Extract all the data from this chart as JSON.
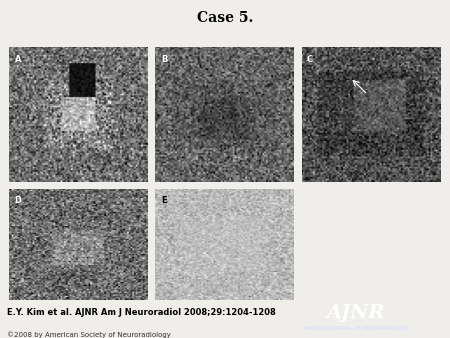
{
  "title": "Case 5.",
  "title_fontsize": 10,
  "citation": "E.Y. Kim et al. AJNR Am J Neuroradiol 2008;29:1204-1208",
  "citation_fontsize": 6.0,
  "copyright": "©2008 by American Society of Neuroradiology",
  "copyright_fontsize": 5.0,
  "bg_color": "#f0eeeb",
  "ajnr_bg": "#1a5a9a",
  "ajnr_text": "AJNR",
  "ajnr_sub": "AMERICAN JOURNAL OF NEURORADIOLOGY",
  "panels": [
    {
      "label": "A",
      "row": 0,
      "col": 0
    },
    {
      "label": "B",
      "row": 0,
      "col": 1
    },
    {
      "label": "C",
      "row": 0,
      "col": 2
    },
    {
      "label": "D",
      "row": 1,
      "col": 0
    },
    {
      "label": "E",
      "row": 1,
      "col": 1
    }
  ],
  "panel_label_color": "white",
  "panel_label_fontsize": 6,
  "image_colors": {
    "A": {
      "base": 110,
      "std": 40
    },
    "B": {
      "base": 100,
      "std": 35
    },
    "C": {
      "base": 80,
      "std": 35
    },
    "D": {
      "base": 110,
      "std": 40
    },
    "E": {
      "base": 185,
      "std": 20
    }
  }
}
